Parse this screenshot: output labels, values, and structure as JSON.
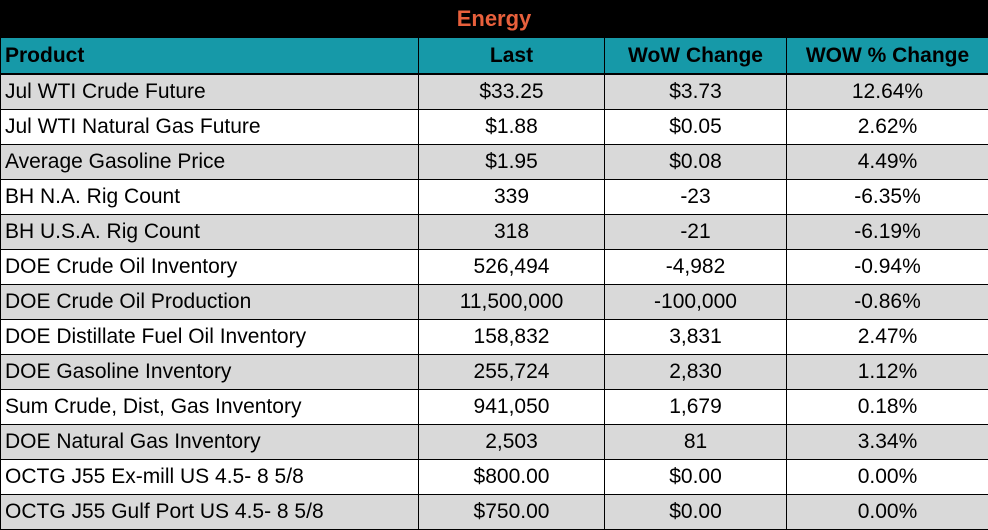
{
  "title": "Energy",
  "headers": [
    "Product",
    "Last",
    "WoW Change",
    "WOW % Change"
  ],
  "rows": [
    [
      "Jul WTI Crude Future",
      "$33.25",
      "$3.73",
      "12.64%"
    ],
    [
      "Jul WTI Natural Gas Future",
      "$1.88",
      "$0.05",
      "2.62%"
    ],
    [
      "Average Gasoline Price",
      "$1.95",
      "$0.08",
      "4.49%"
    ],
    [
      "BH N.A. Rig Count",
      "339",
      "-23",
      "-6.35%"
    ],
    [
      "BH U.S.A. Rig Count",
      "318",
      "-21",
      "-6.19%"
    ],
    [
      "DOE Crude Oil Inventory",
      "526,494",
      "-4,982",
      "-0.94%"
    ],
    [
      "DOE Crude Oil Production",
      "11,500,000",
      "-100,000",
      "-0.86%"
    ],
    [
      "DOE Distillate Fuel Oil Inventory",
      "158,832",
      "3,831",
      "2.47%"
    ],
    [
      "DOE Gasoline Inventory",
      "255,724",
      "2,830",
      "1.12%"
    ],
    [
      "Sum Crude, Dist, Gas Inventory",
      "941,050",
      "1,679",
      "0.18%"
    ],
    [
      "DOE Natural Gas Inventory",
      "2,503",
      "81",
      "3.34%"
    ],
    [
      "OCTG J55 Ex-mill US 4.5- 8 5/8",
      "$800.00",
      "$0.00",
      "0.00%"
    ],
    [
      "OCTG J55 Gulf Port US 4.5- 8 5/8",
      "$750.00",
      "$0.00",
      "0.00%"
    ]
  ],
  "colors": {
    "title_bg": "#000000",
    "title_text": "#e8603c",
    "header_bg": "#1699a8",
    "stripe": "#d9d9d9"
  }
}
